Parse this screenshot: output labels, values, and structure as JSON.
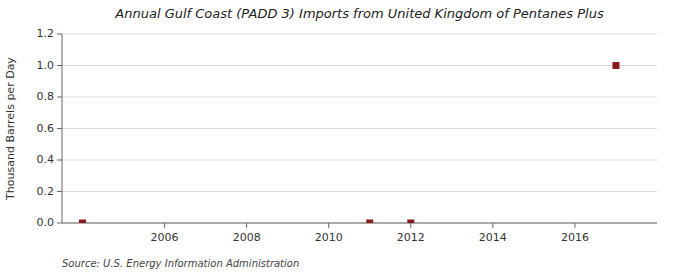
{
  "chart_data": {
    "type": "scatter",
    "title": "Annual Gulf Coast (PADD 3) Imports from United Kingdom of Pentanes Plus",
    "y_label": "Thousand Barrels per Day",
    "annotations": [
      "Source: U.S. Energy Information Administration"
    ],
    "x": [
      2004,
      2011,
      2012,
      2017
    ],
    "values": [
      0.0,
      0.0,
      0.0,
      1.0
    ],
    "color": "#8b1a1a",
    "marker": "square",
    "xlim": [
      2003.5,
      2018.0
    ],
    "ylim": [
      0.0,
      1.2
    ],
    "xticks": [
      2006,
      2008,
      2010,
      2012,
      2014,
      2016
    ],
    "yticks": [
      {
        "value": 0,
        "label": "0.0"
      },
      0.2,
      0.4,
      0.6,
      0.8,
      {
        "value": 1,
        "label": "1.0"
      },
      1.2
    ],
    "grid": true
  }
}
